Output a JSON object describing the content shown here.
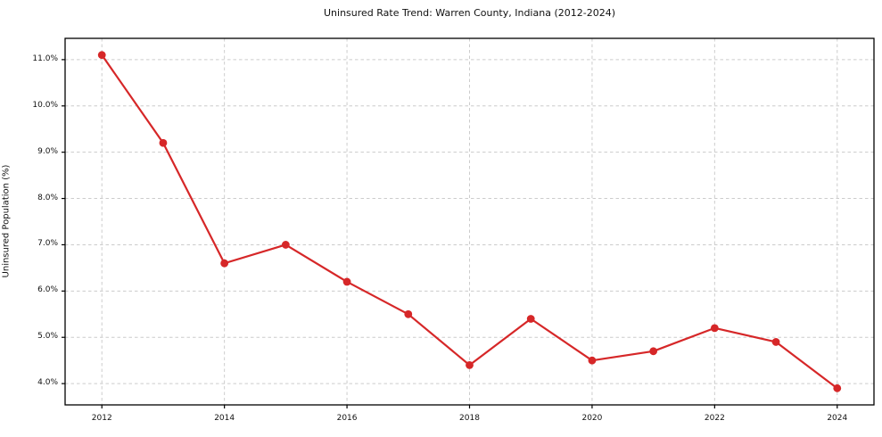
{
  "chart_data": {
    "type": "line",
    "title": "Uninsured Rate Trend: Warren County, Indiana (2012-2024)",
    "xlabel": "",
    "ylabel": "Uninsured Population (%)",
    "x": [
      2012,
      2013,
      2014,
      2015,
      2016,
      2017,
      2018,
      2019,
      2020,
      2021,
      2022,
      2023,
      2024
    ],
    "values": [
      11.1,
      9.2,
      6.6,
      7.0,
      6.2,
      5.5,
      4.4,
      5.4,
      4.5,
      4.7,
      5.2,
      4.9,
      3.9
    ],
    "x_ticks": [
      2012,
      2014,
      2016,
      2018,
      2020,
      2022,
      2024
    ],
    "x_tick_labels": [
      "2012",
      "2014",
      "2016",
      "2018",
      "2020",
      "2022",
      "2024"
    ],
    "y_ticks": [
      4.0,
      5.0,
      6.0,
      7.0,
      8.0,
      9.0,
      10.0,
      11.0
    ],
    "y_tick_labels": [
      "4.0%",
      "5.0%",
      "6.0%",
      "7.0%",
      "8.0%",
      "9.0%",
      "10.0%",
      "11.0%"
    ],
    "xlim": [
      2011.4,
      2024.6
    ],
    "ylim": [
      3.54,
      11.46
    ],
    "grid": true,
    "grid_style": "dashed",
    "legend": null,
    "line_color": "#d62728",
    "grid_color": "#cccccc",
    "spine_color": "#000000",
    "marker": "circle"
  }
}
